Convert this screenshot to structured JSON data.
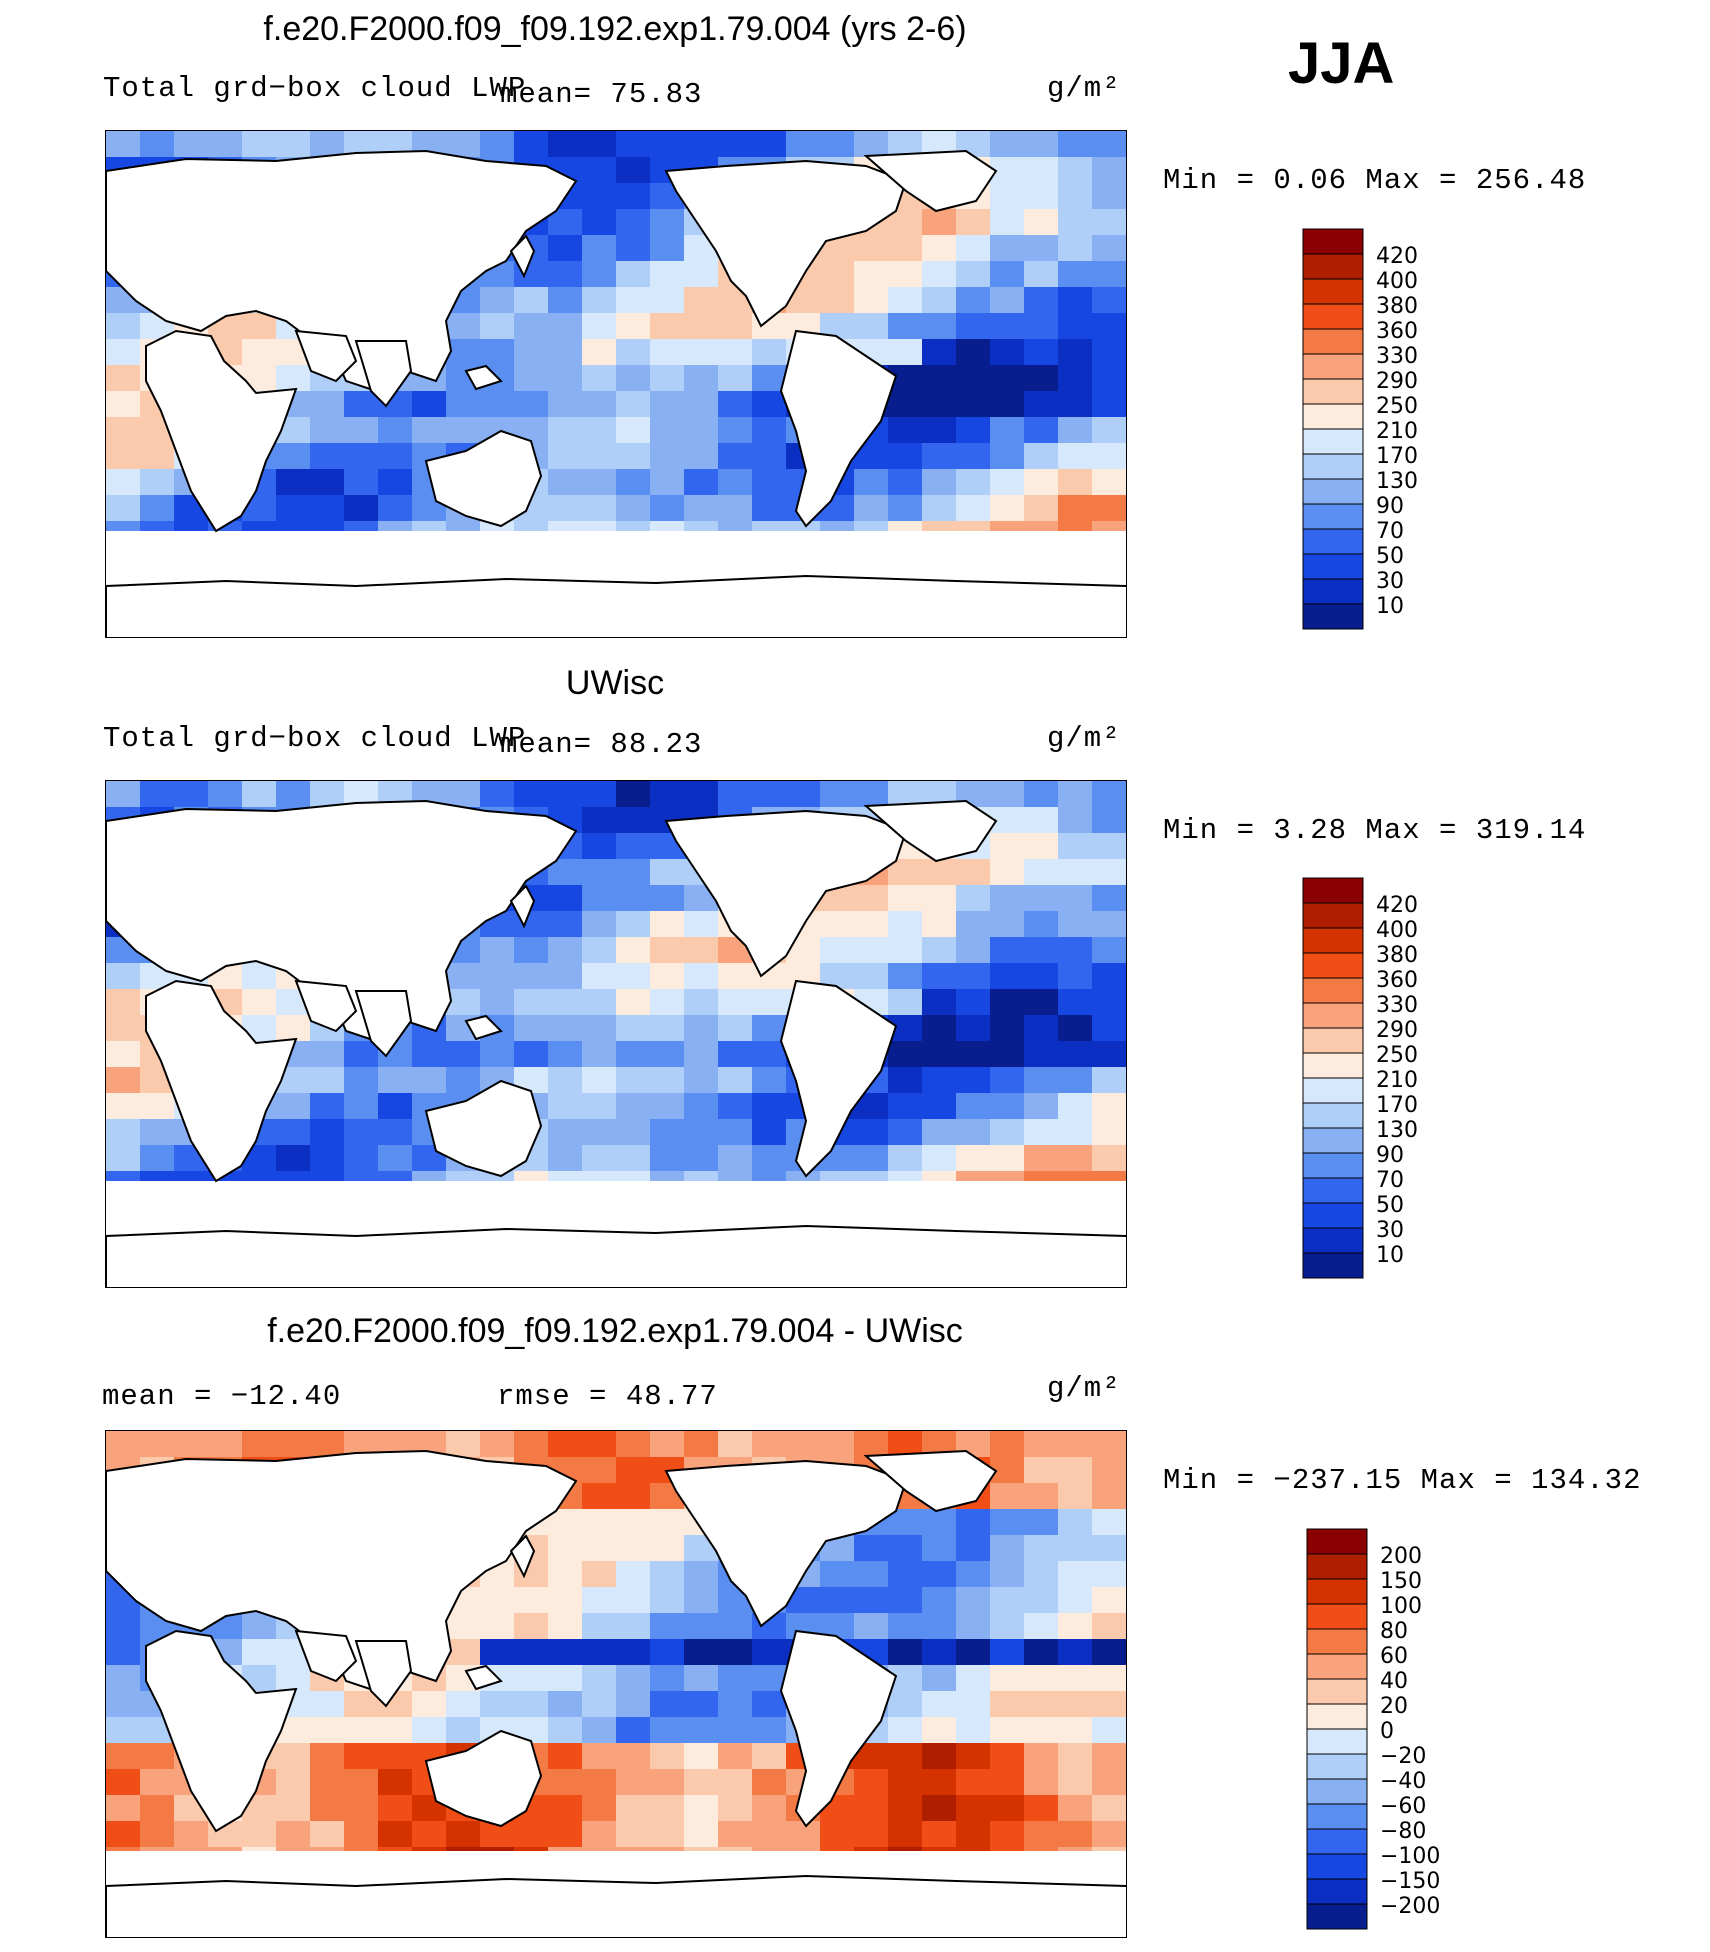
{
  "season": "JJA",
  "chart_data": [
    {
      "type": "heatmap",
      "title": "f.e20.F2000.f09_f09.192.exp1.79.004 (yrs 2-6)",
      "subtitle": "Total grd−box cloud LWP",
      "mean_text": "mean=   75.83",
      "units": "g/m²",
      "minmax_text": "Min =    0.06 Max = 256.48",
      "colorbar": {
        "levels": [
          "420",
          "400",
          "380",
          "360",
          "330",
          "290",
          "250",
          "210",
          "170",
          "130",
          "90",
          "70",
          "50",
          "30",
          "10"
        ],
        "colors": [
          "#8b0000",
          "#b01e00",
          "#d43300",
          "#f04d17",
          "#f47a45",
          "#f8a37c",
          "#fbc9ab",
          "#fdebdd",
          "#d6e8fb",
          "#b0cff8",
          "#89b0f3",
          "#5a8ef0",
          "#3366ee",
          "#1747e2",
          "#0a2fc2",
          "#081e8e"
        ]
      }
    },
    {
      "type": "heatmap",
      "title": "UWisc",
      "subtitle": "Total grd−box cloud LWP",
      "mean_text": "mean=   88.23",
      "units": "g/m²",
      "minmax_text": "Min =    3.28 Max = 319.14",
      "colorbar": {
        "levels": [
          "420",
          "400",
          "380",
          "360",
          "330",
          "290",
          "250",
          "210",
          "170",
          "130",
          "90",
          "70",
          "50",
          "30",
          "10"
        ],
        "colors": [
          "#8b0000",
          "#b01e00",
          "#d43300",
          "#f04d17",
          "#f47a45",
          "#f8a37c",
          "#fbc9ab",
          "#fdebdd",
          "#d6e8fb",
          "#b0cff8",
          "#89b0f3",
          "#5a8ef0",
          "#3366ee",
          "#1747e2",
          "#0a2fc2",
          "#081e8e"
        ]
      }
    },
    {
      "type": "heatmap",
      "title": "f.e20.F2000.f09_f09.192.exp1.79.004 - UWisc",
      "mean_text": "mean = −12.40",
      "rmse_text": "rmse =   48.77",
      "units": "g/m²",
      "minmax_text": "Min = −237.15 Max = 134.32",
      "colorbar": {
        "levels": [
          "200",
          "150",
          "100",
          "80",
          "60",
          "40",
          "20",
          "0",
          "−20",
          "−40",
          "−60",
          "−80",
          "−100",
          "−150",
          "−200"
        ],
        "colors": [
          "#8b0000",
          "#b01e00",
          "#d43300",
          "#f04d17",
          "#f47a45",
          "#f8a37c",
          "#fbc9ab",
          "#fdebdd",
          "#d6e8fb",
          "#b0cff8",
          "#89b0f3",
          "#5a8ef0",
          "#3366ee",
          "#1747e2",
          "#0a2fc2",
          "#081e8e"
        ]
      }
    }
  ]
}
